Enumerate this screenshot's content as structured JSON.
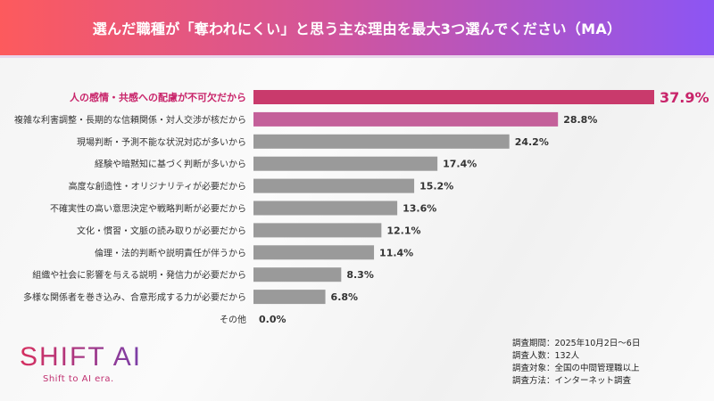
{
  "header": {
    "title": "選んだ職種が「奪われにくい」と思う主な理由を最大3つ選んでください（MA）"
  },
  "chart_data": {
    "type": "bar",
    "orientation": "horizontal",
    "categories": [
      "人の感情・共感への配慮が不可欠だから",
      "複雑な利害調整・長期的な信頼関係・対人交渉が核だから",
      "現場判断・予測不能な状況対応が多いから",
      "経験や暗黙知に基づく判断が多いから",
      "高度な創造性・オリジナリティが必要だから",
      "不確実性の高い意思決定や戦略判断が必要だから",
      "文化・慣習・文脈の読み取りが必要だから",
      "倫理・法的判断や説明責任が伴うから",
      "組織や社会に影響を与える説明・発信力が必要だから",
      "多様な関係者を巻き込み、合意形成する力が必要だから",
      "その他"
    ],
    "values": [
      37.9,
      28.8,
      24.2,
      17.4,
      15.2,
      13.6,
      12.1,
      11.4,
      8.3,
      6.8,
      0.0
    ],
    "data_labels": [
      "37.9%",
      "28.8%",
      "24.2%",
      "17.4%",
      "15.2%",
      "13.6%",
      "12.1%",
      "11.4%",
      "8.3%",
      "6.8%",
      "0.0%"
    ],
    "unit": "%",
    "xlim": [
      0,
      40
    ],
    "grid": false,
    "colors": {
      "top1": "#c93a6c",
      "top2": "#c4609a",
      "other": "#9a9a9a",
      "highlight_label": "#c8246a"
    }
  },
  "logo": {
    "text": "SHIFT AI",
    "tagline": "Shift to AI era."
  },
  "notes": [
    "調査期間：2025年10月2日～6日",
    "調査人数：132人",
    "調査対象：全国の中間管理職以上",
    "調査方法：インターネット調査"
  ]
}
